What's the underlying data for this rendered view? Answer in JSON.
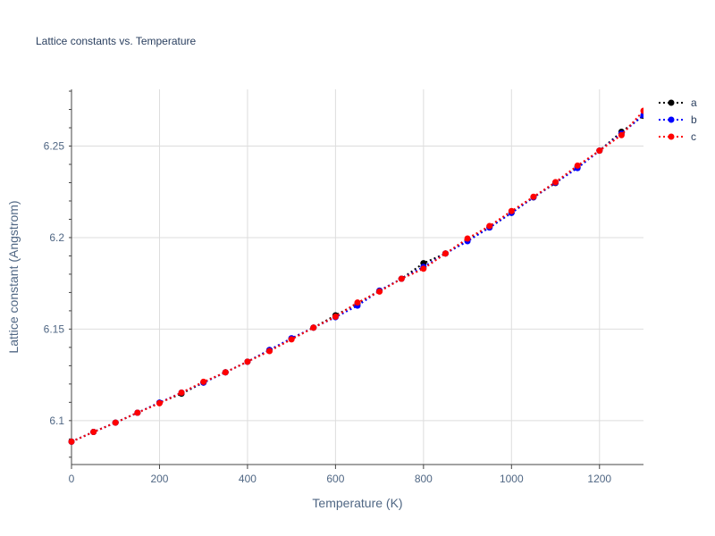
{
  "chart_data": {
    "type": "line",
    "title": "Lattice constants vs. Temperature",
    "xlabel": "Temperature (K)",
    "ylabel": "Lattice constant (Angstrom)",
    "xlim": [
      0,
      1300
    ],
    "ylim": [
      6.076,
      6.281
    ],
    "xticks": [
      0,
      200,
      400,
      600,
      800,
      1000,
      1200
    ],
    "xtick_labels": [
      "0",
      "200",
      "400",
      "600",
      "800",
      "1000",
      "1200"
    ],
    "yticks": [
      6.1,
      6.15,
      6.2,
      6.25
    ],
    "ytick_labels": [
      "6.1",
      "6.15",
      "6.2",
      "6.25"
    ],
    "grid": true,
    "legend_position": "right",
    "x": [
      0,
      50,
      100,
      150,
      200,
      250,
      300,
      350,
      400,
      450,
      500,
      550,
      600,
      650,
      700,
      750,
      800,
      850,
      900,
      950,
      1000,
      1050,
      1100,
      1150,
      1200,
      1250,
      1300
    ],
    "series": [
      {
        "name": "a",
        "color": "#000000",
        "values": [
          6.0885,
          6.0938,
          6.0989,
          6.1043,
          6.1098,
          6.1147,
          6.1208,
          6.1264,
          6.1322,
          6.1386,
          6.1447,
          6.1508,
          6.1575,
          6.164,
          6.171,
          6.1775,
          6.186,
          6.1913,
          6.1985,
          6.2055,
          6.2135,
          6.222,
          6.2298,
          6.2385,
          6.2475,
          6.2578,
          6.2665
        ]
      },
      {
        "name": "b",
        "color": "#0000ff",
        "values": [
          6.0885,
          6.0938,
          6.0989,
          6.1043,
          6.1098,
          6.1153,
          6.1208,
          6.1264,
          6.1322,
          6.1386,
          6.145,
          6.1508,
          6.1565,
          6.1628,
          6.171,
          6.1775,
          6.184,
          6.1913,
          6.198,
          6.2055,
          6.2135,
          6.222,
          6.23,
          6.238,
          6.2475,
          6.2568,
          6.267
        ]
      },
      {
        "name": "c",
        "color": "#ff0000",
        "values": [
          6.0885,
          6.0938,
          6.0989,
          6.1043,
          6.1095,
          6.1153,
          6.1212,
          6.1264,
          6.1322,
          6.138,
          6.1444,
          6.1508,
          6.1568,
          6.1645,
          6.1705,
          6.1775,
          6.183,
          6.1913,
          6.1995,
          6.2063,
          6.2145,
          6.2223,
          6.2303,
          6.2393,
          6.2475,
          6.256,
          6.2693
        ]
      }
    ]
  }
}
